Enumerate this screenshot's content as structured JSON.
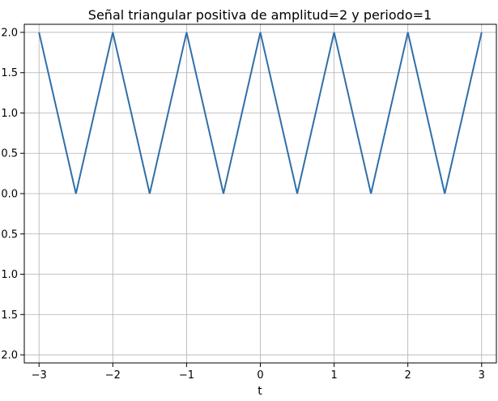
{
  "chart_data": {
    "type": "line",
    "title": "Señal triangular positiva de amplitud=2 y periodo=1",
    "xlabel": "t",
    "ylabel": "",
    "xlim": [
      -3.2,
      3.2
    ],
    "ylim": [
      -2.1,
      2.1
    ],
    "xticks": [
      -3,
      -2,
      -1,
      0,
      1,
      2,
      3
    ],
    "xtick_labels": [
      "−3",
      "−2",
      "−1",
      "0",
      "1",
      "2",
      "3"
    ],
    "yticks": [
      2.0,
      1.5,
      1.0,
      0.5,
      0.0,
      -0.5,
      -1.0,
      -1.5,
      -2.0
    ],
    "ytick_labels": [
      "2.0",
      "1.5",
      "1.0",
      "0.5",
      "0.0",
      "−0.5",
      "−1.0",
      "−1.5",
      "−2.0"
    ],
    "grid": true,
    "series": [
      {
        "color": "#2f6fa8",
        "x": [
          -3,
          -2.5,
          -2,
          -1.5,
          -1,
          -0.5,
          0,
          0.5,
          1,
          1.5,
          2,
          2.5,
          3
        ],
        "y": [
          2,
          0,
          2,
          0,
          2,
          0,
          2,
          0,
          2,
          0,
          2,
          0,
          2
        ]
      }
    ]
  }
}
